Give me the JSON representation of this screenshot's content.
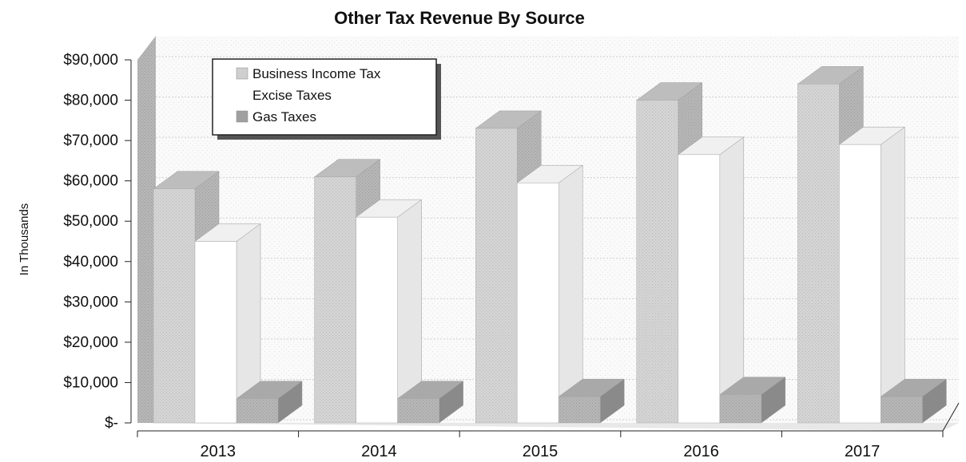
{
  "chart_data": {
    "type": "bar",
    "title": "Other Tax Revenue By Source",
    "ylabel": "In Thousands",
    "xlabel": "",
    "categories": [
      "2013",
      "2014",
      "2015",
      "2016",
      "2017"
    ],
    "series": [
      {
        "name": "Business Income Tax",
        "values": [
          58000,
          61000,
          73000,
          80000,
          84000
        ]
      },
      {
        "name": "Excise Taxes",
        "values": [
          45000,
          51000,
          59500,
          66500,
          69000
        ]
      },
      {
        "name": "Gas Taxes",
        "values": [
          6000,
          6000,
          6500,
          7000,
          6500
        ]
      }
    ],
    "ylim": [
      0,
      90000
    ],
    "yticks": [
      0,
      10000,
      20000,
      30000,
      40000,
      50000,
      60000,
      70000,
      80000,
      90000
    ],
    "ytick_labels": [
      "$-",
      "$10,000",
      "$20,000",
      "$30,000",
      "$40,000",
      "$50,000",
      "$60,000",
      "$70,000",
      "$80,000",
      "$90,000"
    ],
    "grid": true,
    "legend_position": "top-left",
    "style": "3d-clustered-column",
    "series_colors": [
      "#d2d2d2",
      "#ffffff",
      "#9a9a9a"
    ]
  }
}
